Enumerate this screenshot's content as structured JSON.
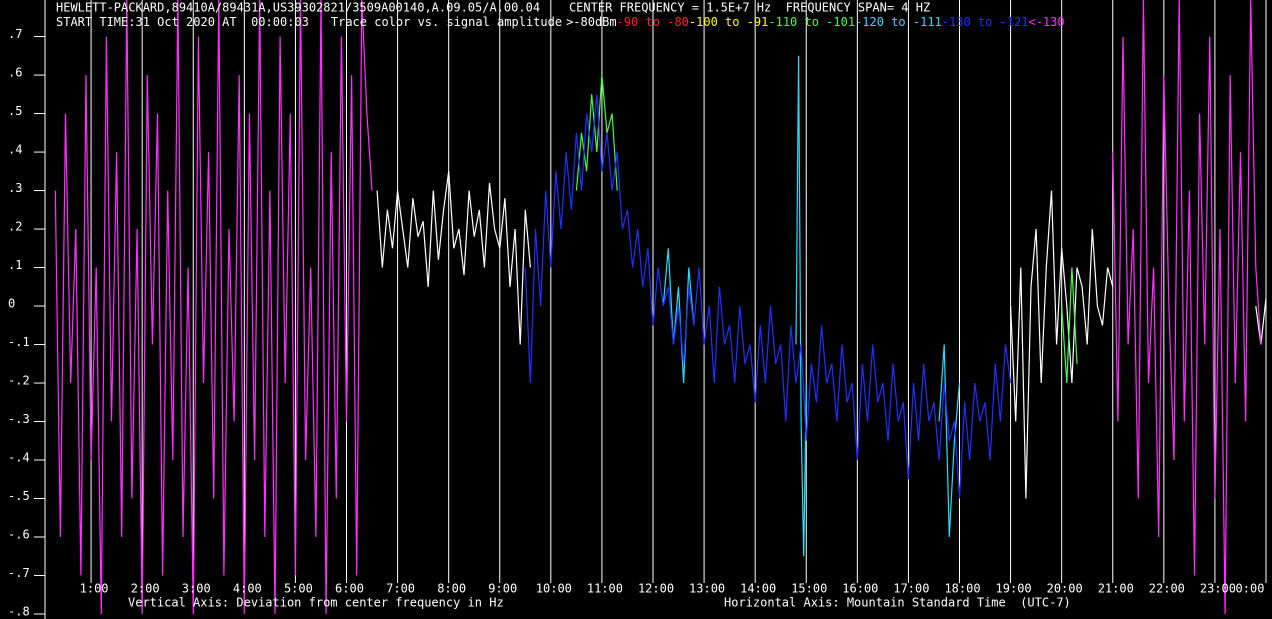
{
  "chart_data": {
    "type": "line",
    "title": "HEWLETT-PACKARD,89410A/89431A,US39302821/3509A00140,A.09.05/A.00.04    CENTER FREQUENCY = 1.5E+7 Hz  FREQUENCY SPAN= 4 HZ",
    "start_time": "START TIME:31 Oct 2020 AT  00:00:03",
    "legend_title": "Trace color vs. signal amplitude",
    "ylabel": "Vertical Axis: Deviation from center frequency in Hz",
    "xlabel": "Horizontal Axis: Mountain Standard Time  (UTC-7)",
    "xlim": [
      0,
      24
    ],
    "ylim": [
      -0.813,
      0.795
    ],
    "grid": true,
    "xticks": [
      {
        "value": 1,
        "label": "1:00"
      },
      {
        "value": 2,
        "label": "2:00"
      },
      {
        "value": 3,
        "label": "3:00"
      },
      {
        "value": 4,
        "label": "4:00"
      },
      {
        "value": 5,
        "label": "5:00"
      },
      {
        "value": 6,
        "label": "6:00"
      },
      {
        "value": 7,
        "label": "7:00"
      },
      {
        "value": 8,
        "label": "8:00"
      },
      {
        "value": 9,
        "label": "9:00"
      },
      {
        "value": 10,
        "label": "10:00"
      },
      {
        "value": 11,
        "label": "11:00"
      },
      {
        "value": 12,
        "label": "12:00"
      },
      {
        "value": 13,
        "label": "13:00"
      },
      {
        "value": 14,
        "label": "14:00"
      },
      {
        "value": 15,
        "label": "15:00"
      },
      {
        "value": 16,
        "label": "16:00"
      },
      {
        "value": 17,
        "label": "17:00"
      },
      {
        "value": 18,
        "label": "18:00"
      },
      {
        "value": 19,
        "label": "19:00"
      },
      {
        "value": 20,
        "label": "20:00"
      },
      {
        "value": 21,
        "label": "21:00"
      },
      {
        "value": 22,
        "label": "22:00"
      },
      {
        "value": 23,
        "label": "23:00"
      },
      {
        "value": 24,
        "label": "0:00"
      }
    ],
    "yticks": [
      {
        "value": 0.7,
        "label": ".7"
      },
      {
        "value": 0.6,
        "label": ".6"
      },
      {
        "value": 0.5,
        "label": ".5"
      },
      {
        "value": 0.4,
        "label": ".4"
      },
      {
        "value": 0.3,
        "label": ".3"
      },
      {
        "value": 0.2,
        "label": ".2"
      },
      {
        "value": 0.1,
        "label": ".1"
      },
      0,
      {
        "value": -0.1,
        "label": "-.1"
      },
      {
        "value": -0.2,
        "label": "-.2"
      },
      {
        "value": -0.3,
        "label": "-.3"
      },
      {
        "value": -0.4,
        "label": "-.4"
      },
      {
        "value": -0.5,
        "label": "-.5"
      },
      {
        "value": -0.6,
        "label": "-.6"
      },
      {
        "value": -0.7,
        "label": "-.7"
      },
      {
        "value": -0.8,
        "label": "-.8"
      }
    ],
    "series": [
      {
        "name": ">-80dBm",
        "color": "#ffffff",
        "x": [
          6.6,
          6.7,
          6.8,
          6.9,
          7.0,
          7.1,
          7.2,
          7.3,
          7.4,
          7.5,
          7.6,
          7.7,
          7.8,
          7.9,
          8.0,
          8.1,
          8.2,
          8.3,
          8.4,
          8.5,
          8.6,
          8.7,
          8.8,
          8.9,
          9.0,
          9.1,
          9.2,
          9.3,
          9.4,
          9.5,
          9.6,
          9.65,
          19.0,
          19.1,
          19.2,
          19.3,
          19.4,
          19.5,
          19.6,
          19.7,
          19.8,
          19.9,
          20.0,
          20.1,
          20.2,
          20.3,
          20.4,
          20.5,
          20.6,
          20.7,
          20.8,
          20.9,
          21.0,
          21.05,
          23.8,
          23.9,
          24.0
        ],
        "values": [
          0.3,
          0.1,
          0.25,
          0.15,
          0.3,
          0.2,
          0.1,
          0.28,
          0.18,
          0.22,
          0.05,
          0.3,
          0.12,
          0.25,
          0.35,
          0.15,
          0.2,
          0.08,
          0.3,
          0.18,
          0.25,
          0.1,
          0.32,
          0.2,
          0.15,
          0.28,
          0.05,
          0.2,
          -0.1,
          0.25,
          0.1,
          null,
          0.0,
          -0.3,
          0.1,
          -0.5,
          0.05,
          0.2,
          -0.2,
          0.1,
          0.3,
          -0.1,
          0.15,
          0.0,
          -0.2,
          0.1,
          0.05,
          -0.1,
          0.2,
          0.0,
          -0.05,
          0.1,
          0.05,
          null,
          0.0,
          -0.1,
          0.02
        ]
      },
      {
        "name": "-90 to -80",
        "color": "#ff2020",
        "x": [],
        "values": []
      },
      {
        "name": "-100 to -91",
        "color": "#ffff00",
        "x": [],
        "values": []
      },
      {
        "name": "-110 to -101",
        "color": "#40ff40",
        "x": [
          10.5,
          10.6,
          10.7,
          10.8,
          10.9,
          11.0,
          11.1,
          11.2,
          11.3,
          11.35,
          20.0,
          20.1,
          20.2,
          20.3
        ],
        "values": [
          0.3,
          0.45,
          0.35,
          0.55,
          0.4,
          0.6,
          0.45,
          0.5,
          0.3,
          null,
          0.0,
          -0.2,
          0.1,
          -0.15
        ]
      },
      {
        "name": "-120 to -111",
        "color": "#20e0ff",
        "x": [
          12.2,
          12.3,
          12.4,
          12.5,
          12.6,
          12.7,
          12.8,
          12.85,
          14.8,
          14.85,
          14.9,
          14.95,
          15.0,
          15.05,
          17.6,
          17.7,
          17.8,
          17.9,
          18.0
        ],
        "values": [
          0.0,
          0.15,
          -0.1,
          0.05,
          -0.2,
          0.1,
          -0.05,
          null,
          -0.1,
          0.65,
          -0.3,
          -0.65,
          -0.2,
          null,
          -0.3,
          -0.1,
          -0.6,
          -0.35,
          -0.2
        ]
      },
      {
        "name": "-130 to -121",
        "color": "#2030ff",
        "x": [
          9.5,
          9.6,
          9.7,
          9.8,
          9.9,
          10.0,
          10.1,
          10.2,
          10.3,
          10.4,
          10.5,
          10.6,
          10.7,
          10.8,
          10.9,
          11.0,
          11.1,
          11.2,
          11.3,
          11.4,
          11.5,
          11.6,
          11.7,
          11.8,
          11.9,
          12.0,
          12.1,
          12.2,
          12.3,
          12.4,
          12.5,
          12.6,
          12.7,
          12.8,
          12.9,
          13.0,
          13.1,
          13.2,
          13.3,
          13.4,
          13.5,
          13.6,
          13.7,
          13.8,
          13.9,
          14.0,
          14.1,
          14.2,
          14.3,
          14.4,
          14.5,
          14.6,
          14.7,
          14.8,
          14.9,
          15.0,
          15.1,
          15.2,
          15.3,
          15.4,
          15.5,
          15.6,
          15.7,
          15.8,
          15.9,
          16.0,
          16.1,
          16.2,
          16.3,
          16.4,
          16.5,
          16.6,
          16.7,
          16.8,
          16.9,
          17.0,
          17.1,
          17.2,
          17.3,
          17.4,
          17.5,
          17.6,
          17.7,
          17.8,
          17.9,
          18.0,
          18.1,
          18.2,
          18.3,
          18.4,
          18.5,
          18.6,
          18.7,
          18.8,
          18.9,
          19.0
        ],
        "values": [
          0.1,
          -0.2,
          0.2,
          0.0,
          0.3,
          0.1,
          0.35,
          0.2,
          0.4,
          0.25,
          0.45,
          0.3,
          0.5,
          0.4,
          0.55,
          0.35,
          0.45,
          0.3,
          0.4,
          0.2,
          0.25,
          0.1,
          0.2,
          0.05,
          0.15,
          -0.05,
          0.1,
          0.0,
          0.05,
          -0.1,
          0.0,
          -0.15,
          0.05,
          -0.05,
          0.1,
          -0.1,
          0.0,
          -0.2,
          0.05,
          -0.1,
          -0.05,
          -0.2,
          0.0,
          -0.15,
          -0.1,
          -0.25,
          -0.05,
          -0.2,
          0.0,
          -0.15,
          -0.1,
          -0.3,
          -0.05,
          -0.2,
          -0.1,
          -0.35,
          -0.15,
          -0.25,
          -0.05,
          -0.2,
          -0.15,
          -0.3,
          -0.1,
          -0.25,
          -0.2,
          -0.4,
          -0.15,
          -0.3,
          -0.1,
          -0.25,
          -0.2,
          -0.35,
          -0.15,
          -0.3,
          -0.25,
          -0.45,
          -0.2,
          -0.35,
          -0.15,
          -0.3,
          -0.25,
          -0.4,
          -0.2,
          -0.35,
          -0.3,
          -0.5,
          -0.25,
          -0.4,
          -0.2,
          -0.3,
          -0.25,
          -0.4,
          -0.15,
          -0.3,
          -0.1,
          -0.2
        ]
      },
      {
        "name": "<-130",
        "color": "#ff30ff",
        "x": [
          0.3,
          0.4,
          0.5,
          0.6,
          0.7,
          0.8,
          0.9,
          1.0,
          1.1,
          1.2,
          1.3,
          1.4,
          1.5,
          1.6,
          1.7,
          1.8,
          1.9,
          2.0,
          2.1,
          2.2,
          2.3,
          2.4,
          2.5,
          2.6,
          2.7,
          2.8,
          2.9,
          3.0,
          3.1,
          3.2,
          3.3,
          3.4,
          3.5,
          3.6,
          3.7,
          3.8,
          3.9,
          4.0,
          4.1,
          4.2,
          4.3,
          4.4,
          4.5,
          4.6,
          4.7,
          4.8,
          4.9,
          5.0,
          5.1,
          5.2,
          5.3,
          5.4,
          5.5,
          5.6,
          5.7,
          5.8,
          5.9,
          6.0,
          6.1,
          6.2,
          6.3,
          6.4,
          6.5,
          6.55,
          21.0,
          21.1,
          21.2,
          21.3,
          21.4,
          21.5,
          21.6,
          21.7,
          21.8,
          21.9,
          22.0,
          22.1,
          22.2,
          22.3,
          22.4,
          22.5,
          22.6,
          22.7,
          22.8,
          22.9,
          23.0,
          23.1,
          23.2,
          23.3,
          23.4,
          23.5,
          23.6,
          23.7,
          23.8,
          23.9
        ],
        "values": [
          0.3,
          -0.6,
          0.5,
          -0.2,
          0.2,
          -0.7,
          0.6,
          -0.4,
          0.1,
          -0.8,
          0.7,
          -0.3,
          0.4,
          -0.6,
          0.8,
          -0.5,
          0.2,
          -0.8,
          0.6,
          -0.1,
          0.5,
          -0.7,
          0.3,
          -0.4,
          0.8,
          -0.6,
          0.1,
          -0.8,
          0.7,
          -0.2,
          0.4,
          -0.5,
          0.8,
          -0.7,
          0.2,
          -0.3,
          0.6,
          -0.8,
          0.5,
          -0.4,
          0.8,
          -0.6,
          0.3,
          -0.8,
          0.7,
          -0.2,
          0.5,
          -0.7,
          0.8,
          -0.4,
          0.1,
          -0.6,
          0.8,
          -0.8,
          0.4,
          -0.5,
          0.7,
          -0.3,
          0.6,
          -0.7,
          0.8,
          0.5,
          0.3,
          null,
          0.4,
          -0.3,
          0.7,
          -0.1,
          0.2,
          -0.5,
          0.8,
          -0.2,
          0.1,
          -0.6,
          0.6,
          0.0,
          -0.4,
          0.8,
          -0.3,
          0.3,
          -0.7,
          0.5,
          -0.1,
          0.7,
          -0.5,
          0.2,
          -0.8,
          0.6,
          -0.2,
          0.4,
          -0.3,
          0.8,
          0.1,
          -0.1
        ]
      }
    ]
  }
}
